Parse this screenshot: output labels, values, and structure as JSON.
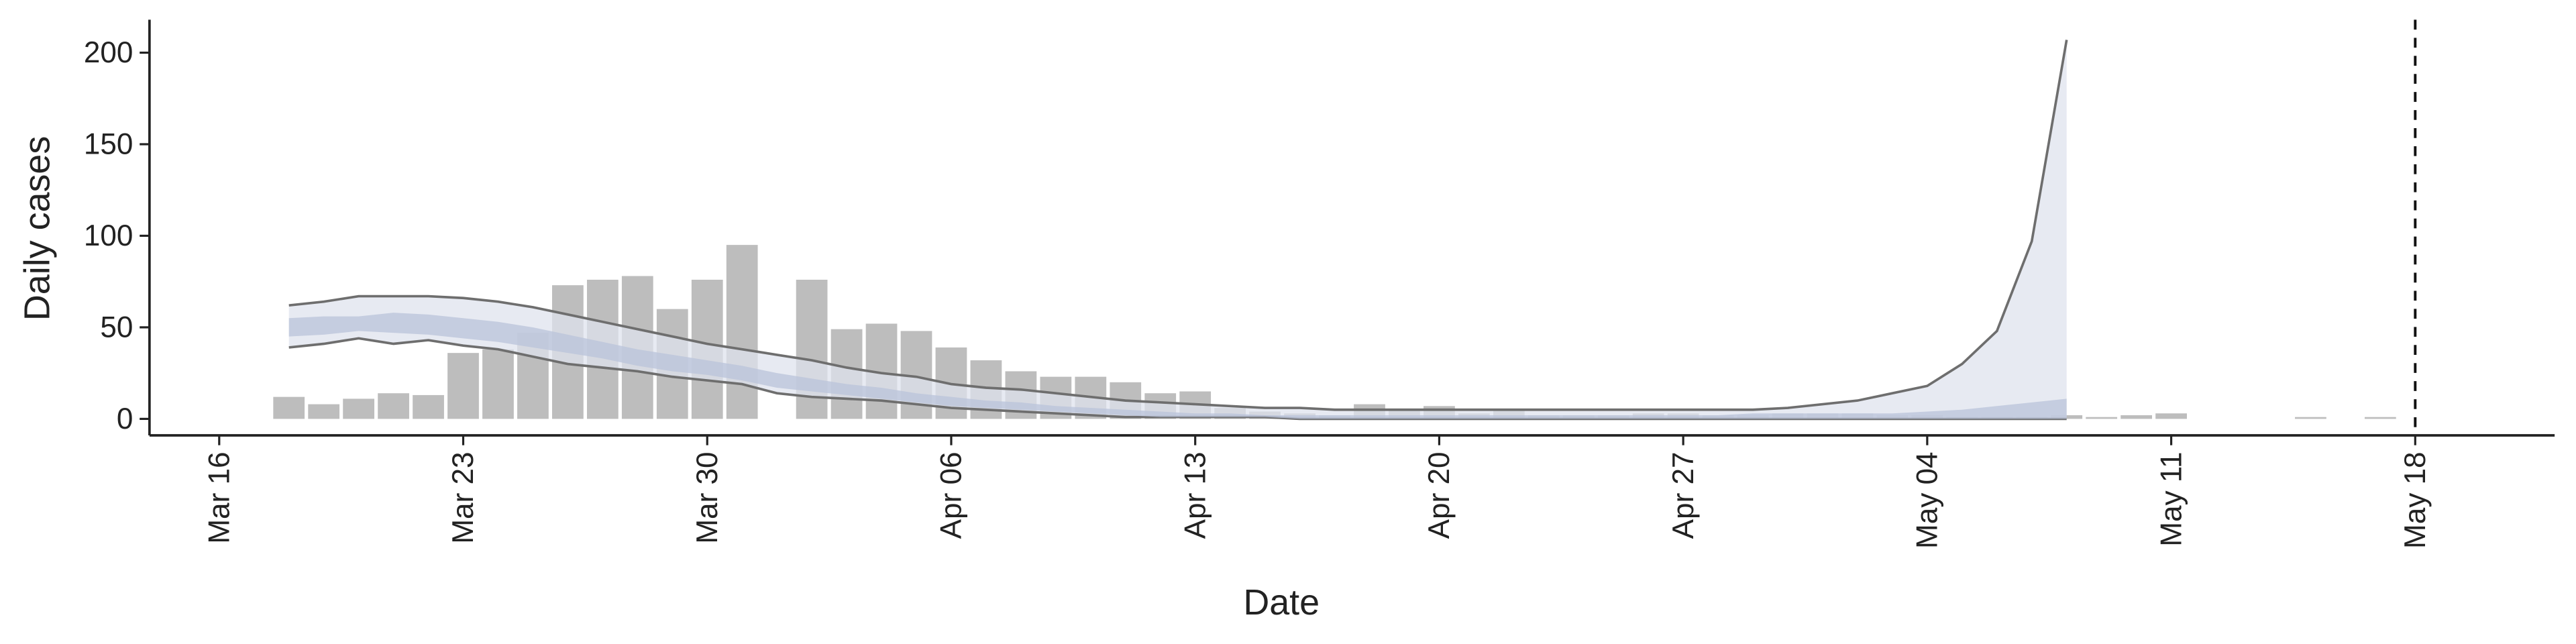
{
  "chart_data": {
    "type": "bar",
    "xlabel": "Date",
    "ylabel": "Daily cases",
    "x": [
      "Mar 18",
      "Mar 19",
      "Mar 20",
      "Mar 21",
      "Mar 22",
      "Mar 23",
      "Mar 24",
      "Mar 25",
      "Mar 26",
      "Mar 27",
      "Mar 28",
      "Mar 29",
      "Mar 30",
      "Mar 31",
      "Apr 1",
      "Apr 2",
      "Apr 3",
      "Apr 4",
      "Apr 5",
      "Apr 6",
      "Apr 7",
      "Apr 8",
      "Apr 9",
      "Apr 10",
      "Apr 11",
      "Apr 12",
      "Apr 13",
      "Apr 14",
      "Apr 15",
      "Apr 16",
      "Apr 17",
      "Apr 18",
      "Apr 19",
      "Apr 20",
      "Apr 21",
      "Apr 22",
      "Apr 23",
      "Apr 24",
      "Apr 25",
      "Apr 26",
      "Apr 27",
      "Apr 28",
      "Apr 29",
      "Apr 30",
      "May 1",
      "May 2",
      "May 3",
      "May 4",
      "May 5",
      "May 6",
      "May 7",
      "May 8",
      "May 9",
      "May 10",
      "May 11",
      "May 12",
      "May 13",
      "May 14",
      "May 15",
      "May 16",
      "May 17"
    ],
    "values": [
      12,
      8,
      11,
      14,
      13,
      36,
      38,
      47,
      73,
      76,
      78,
      60,
      76,
      95,
      0,
      76,
      49,
      52,
      48,
      39,
      32,
      26,
      23,
      23,
      20,
      14,
      15,
      6,
      4,
      3,
      2,
      8,
      5,
      7,
      3,
      5,
      2,
      2,
      2,
      3,
      3,
      2,
      2,
      3,
      3,
      3,
      2,
      2,
      1,
      1,
      1,
      2,
      1,
      2,
      3,
      0,
      0,
      0,
      1,
      0,
      1
    ],
    "color": "#bdbdbd",
    "bands": [
      {
        "color": "#dfe3ee",
        "line_color": "#6e6e6e",
        "x": [
          "Mar 18",
          "Mar 19",
          "Mar 20",
          "Mar 21",
          "Mar 22",
          "Mar 23",
          "Mar 24",
          "Mar 25",
          "Mar 26",
          "Mar 27",
          "Mar 28",
          "Mar 29",
          "Mar 30",
          "Mar 31",
          "Apr 1",
          "Apr 2",
          "Apr 3",
          "Apr 4",
          "Apr 5",
          "Apr 6",
          "Apr 7",
          "Apr 8",
          "Apr 9",
          "Apr 10",
          "Apr 11",
          "Apr 12",
          "Apr 13",
          "Apr 14",
          "Apr 15",
          "Apr 16",
          "Apr 17",
          "Apr 18",
          "Apr 19",
          "Apr 20",
          "Apr 21",
          "Apr 22",
          "Apr 23",
          "Apr 24",
          "Apr 25",
          "Apr 26",
          "Apr 27",
          "Apr 28",
          "Apr 29",
          "Apr 30",
          "May 1",
          "May 2",
          "May 3",
          "May 4",
          "May 5",
          "May 6",
          "May 7",
          "May 8"
        ],
        "upper": [
          62,
          64,
          67,
          67,
          67,
          66,
          64,
          61,
          57,
          53,
          49,
          45,
          41,
          38,
          35,
          32,
          28,
          25,
          23,
          19,
          17,
          16,
          14,
          12,
          10,
          9,
          8,
          7,
          6,
          6,
          5,
          5,
          5,
          5,
          5,
          5,
          5,
          5,
          5,
          5,
          5,
          5,
          5,
          6,
          8,
          10,
          14,
          18,
          30,
          48,
          97,
          207
        ],
        "lower": [
          39,
          41,
          44,
          41,
          43,
          40,
          38,
          34,
          30,
          28,
          26,
          23,
          21,
          19,
          14,
          12,
          11,
          10,
          8,
          6,
          5,
          4,
          3,
          2,
          1,
          1,
          1,
          1,
          1,
          0,
          0,
          0,
          0,
          0,
          0,
          0,
          0,
          0,
          0,
          0,
          0,
          0,
          0,
          0,
          0,
          0,
          0,
          0,
          0,
          0,
          0,
          0
        ]
      },
      {
        "color": "#b9c3d9",
        "x": [
          "Mar 18",
          "Mar 19",
          "Mar 20",
          "Mar 21",
          "Mar 22",
          "Mar 23",
          "Mar 24",
          "Mar 25",
          "Mar 26",
          "Mar 27",
          "Mar 28",
          "Mar 29",
          "Mar 30",
          "Mar 31",
          "Apr 1",
          "Apr 2",
          "Apr 3",
          "Apr 4",
          "Apr 5",
          "Apr 6",
          "Apr 7",
          "Apr 8",
          "Apr 9",
          "Apr 10",
          "Apr 11",
          "Apr 12",
          "Apr 13",
          "Apr 14",
          "Apr 15",
          "Apr 16",
          "Apr 17",
          "Apr 18",
          "Apr 19",
          "Apr 20",
          "Apr 21",
          "Apr 22",
          "Apr 23",
          "Apr 24",
          "Apr 25",
          "Apr 26",
          "Apr 27",
          "Apr 28",
          "Apr 29",
          "Apr 30",
          "May 1",
          "May 2",
          "May 3",
          "May 4",
          "May 5",
          "May 6",
          "May 7",
          "May 8"
        ],
        "upper": [
          55,
          56,
          56,
          58,
          57,
          55,
          53,
          50,
          46,
          42,
          38,
          35,
          32,
          29,
          25,
          22,
          19,
          17,
          14,
          12,
          10,
          9,
          7,
          6,
          5,
          4,
          3,
          3,
          2,
          2,
          2,
          2,
          2,
          2,
          2,
          2,
          2,
          2,
          2,
          2,
          2,
          2,
          3,
          3,
          3,
          3,
          3,
          4,
          5,
          7,
          9,
          11
        ],
        "lower": [
          45,
          46,
          48,
          47,
          46,
          44,
          42,
          39,
          36,
          33,
          29,
          26,
          24,
          21,
          17,
          15,
          13,
          11,
          9,
          7,
          6,
          5,
          4,
          3,
          2,
          1,
          1,
          1,
          1,
          0,
          0,
          0,
          0,
          0,
          0,
          0,
          0,
          0,
          0,
          0,
          0,
          0,
          0,
          0,
          0,
          0,
          0,
          0,
          0,
          0,
          0,
          0
        ]
      }
    ],
    "vline": "May 18",
    "xlim": [
      "Mar 14",
      "May 22"
    ],
    "xticks": [
      "Mar 16",
      "Mar 23",
      "Mar 30",
      "Apr 06",
      "Apr 13",
      "Apr 20",
      "Apr 27",
      "May 04",
      "May 11",
      "May 18"
    ],
    "ylim": [
      -9,
      218
    ],
    "yticks": [
      0,
      50,
      100,
      150,
      200
    ]
  }
}
